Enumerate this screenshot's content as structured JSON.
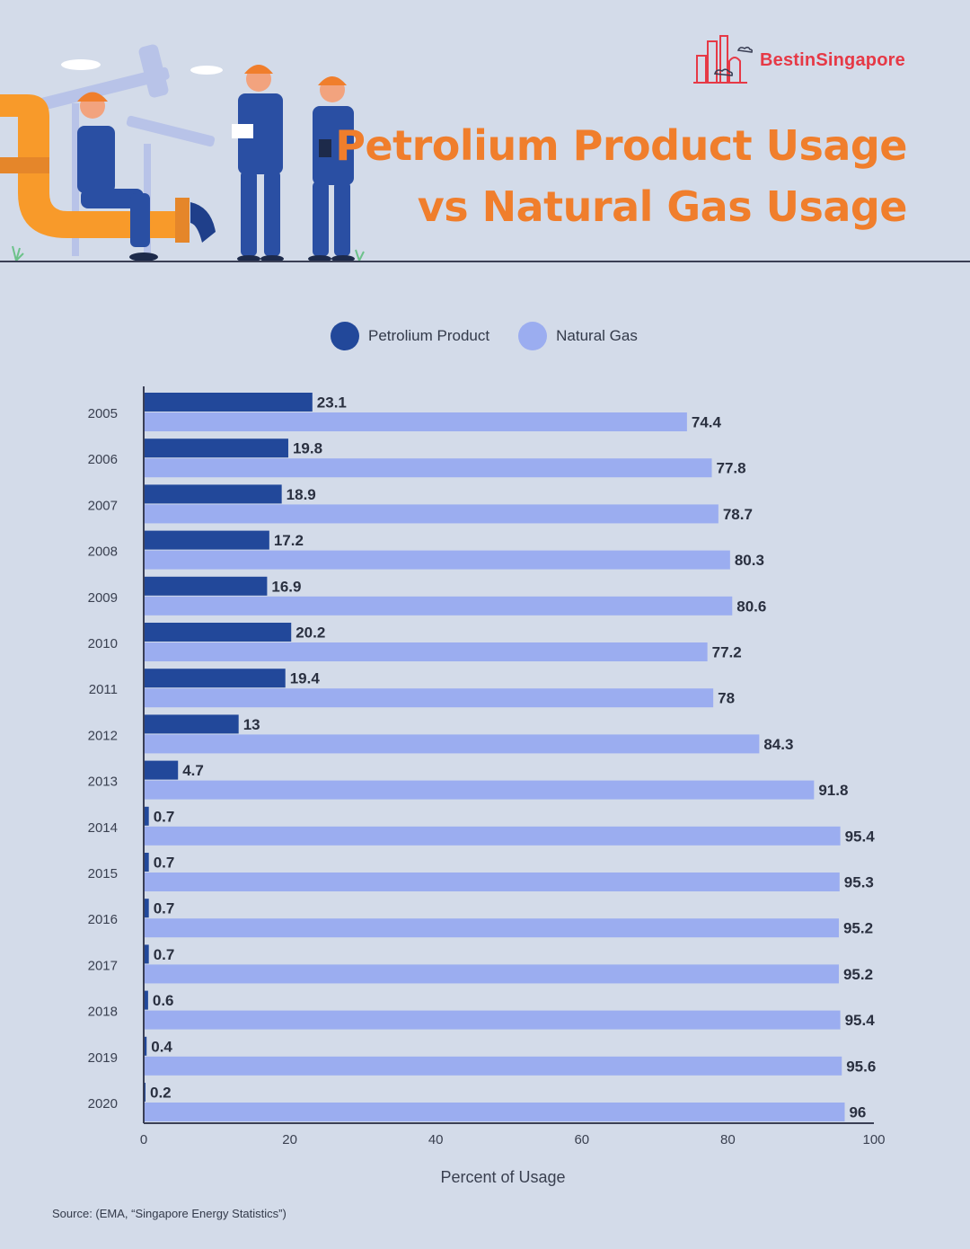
{
  "brand": {
    "name_prefix": "Best",
    "name_mid": "in",
    "name_suffix": "Singapore"
  },
  "title": {
    "line1": "Petrolium Product Usage",
    "line2": "vs Natural Gas Usage"
  },
  "colors": {
    "title": "#f07e2c",
    "petroleum": "#22489a",
    "gas": "#9badf0",
    "brand": "#e63946",
    "background": "#d3dbe9"
  },
  "source": "Source: (EMA, “Singapore Energy Statistics”)",
  "chart_data": {
    "type": "bar",
    "orientation": "horizontal",
    "categories": [
      "2005",
      "2006",
      "2007",
      "2008",
      "2009",
      "2010",
      "2011",
      "2012",
      "2013",
      "2014",
      "2015",
      "2016",
      "2017",
      "2018",
      "2019",
      "2020"
    ],
    "series": [
      {
        "name": "Petrolium Product",
        "color": "#22489a",
        "values": [
          23.1,
          19.8,
          18.9,
          17.2,
          16.9,
          20.2,
          19.4,
          13,
          4.7,
          0.7,
          0.7,
          0.7,
          0.7,
          0.6,
          0.4,
          0.2
        ]
      },
      {
        "name": "Natural Gas",
        "color": "#9badf0",
        "values": [
          74.4,
          77.8,
          78.7,
          80.3,
          80.6,
          77.2,
          78,
          84.3,
          91.8,
          95.4,
          95.3,
          95.2,
          95.2,
          95.4,
          95.6,
          96
        ]
      }
    ],
    "xlabel": "Percent of Usage",
    "ylabel": "",
    "xlim": [
      0,
      100
    ],
    "xticks": [
      0,
      20,
      40,
      60,
      80,
      100
    ],
    "grid": false,
    "legend": "top-center"
  }
}
